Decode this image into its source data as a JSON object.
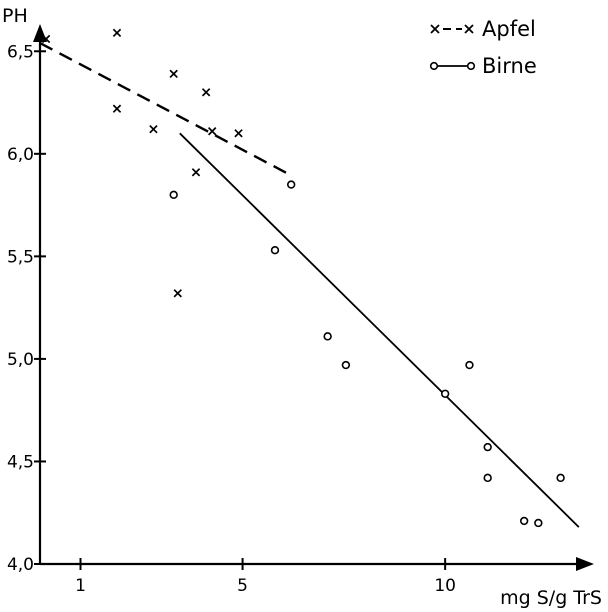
{
  "chart_data": {
    "type": "scatter",
    "xlabel": "mg S/g TrS",
    "ylabel": "PH",
    "xlim": [
      0,
      13.6
    ],
    "ylim": [
      4.0,
      6.75
    ],
    "x_ticks": [
      {
        "value": 1,
        "label": "1"
      },
      {
        "value": 5,
        "label": "5"
      },
      {
        "value": 10,
        "label": "10"
      }
    ],
    "y_ticks": [
      {
        "value": 4.0,
        "label": "4,0"
      },
      {
        "value": 4.5,
        "label": "4,5"
      },
      {
        "value": 5.0,
        "label": "5,0"
      },
      {
        "value": 5.5,
        "label": "5,5"
      },
      {
        "value": 6.0,
        "label": "6,0"
      },
      {
        "value": 6.5,
        "label": "6,5"
      }
    ],
    "grid": false,
    "legend_position": "top-right",
    "series": [
      {
        "name": "Apfel",
        "marker": "x",
        "trend_style": "dashed",
        "points": [
          {
            "x": 0.15,
            "y": 6.56
          },
          {
            "x": 1.9,
            "y": 6.59
          },
          {
            "x": 1.9,
            "y": 6.22
          },
          {
            "x": 2.8,
            "y": 6.12
          },
          {
            "x": 3.3,
            "y": 6.39
          },
          {
            "x": 3.4,
            "y": 5.32
          },
          {
            "x": 3.85,
            "y": 5.91
          },
          {
            "x": 4.1,
            "y": 6.3
          },
          {
            "x": 4.25,
            "y": 6.11
          },
          {
            "x": 4.9,
            "y": 6.1
          }
        ],
        "trend": [
          {
            "x": 0.0,
            "y": 6.54
          },
          {
            "x": 6.15,
            "y": 5.9
          }
        ]
      },
      {
        "name": "Birne",
        "marker": "o",
        "trend_style": "solid",
        "points": [
          {
            "x": 3.3,
            "y": 5.8
          },
          {
            "x": 6.2,
            "y": 5.85
          },
          {
            "x": 5.8,
            "y": 5.53
          },
          {
            "x": 7.1,
            "y": 5.11
          },
          {
            "x": 7.55,
            "y": 4.97
          },
          {
            "x": 10.0,
            "y": 4.83
          },
          {
            "x": 10.6,
            "y": 4.97
          },
          {
            "x": 11.05,
            "y": 4.57
          },
          {
            "x": 11.05,
            "y": 4.42
          },
          {
            "x": 11.95,
            "y": 4.21
          },
          {
            "x": 12.3,
            "y": 4.2
          },
          {
            "x": 12.85,
            "y": 4.42
          }
        ],
        "trend": [
          {
            "x": 3.45,
            "y": 6.1
          },
          {
            "x": 13.3,
            "y": 4.18
          }
        ]
      }
    ]
  }
}
